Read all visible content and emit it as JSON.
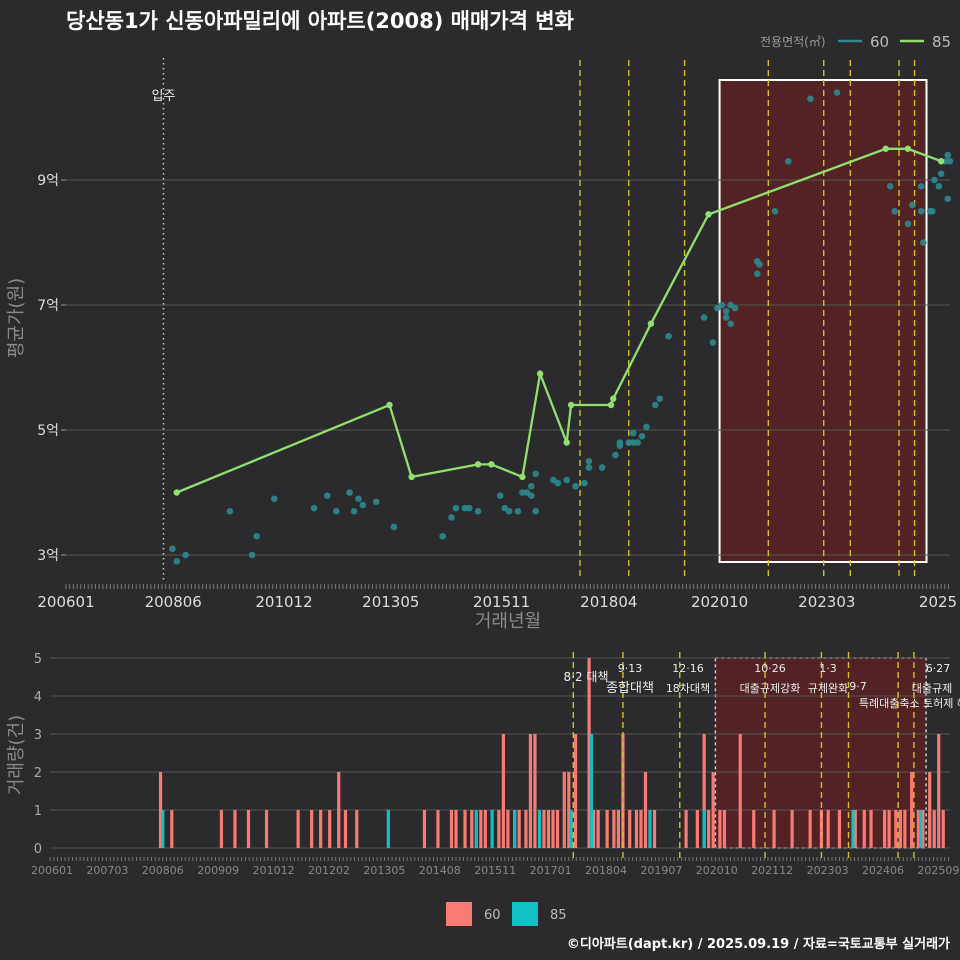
{
  "title": "당산동1가 신동아파밀리에 아파트(2008) 매매가격 변화",
  "footer": "©디아파트(dapt.kr) / 2025.09.19 / 자료=국토교통부 실거래가",
  "colors": {
    "background": "#2b2b2d",
    "grid": "#555555",
    "series_60": "#2a8a8e",
    "series_85": "#90e070",
    "bar_60": "#f77a74",
    "bar_85": "#11c0c4",
    "policy_line": "#d4c21c",
    "highlight_fill": "#5a2124",
    "highlight_border": "#ffffff"
  },
  "move_in_label": "입주",
  "chart_data": [
    {
      "type": "scatter",
      "title": "당산동1가 신동아파밀리에 아파트(2008) 매매가격 변화",
      "xlabel": "거래년월",
      "ylabel": "평균가(원)",
      "x_ticks": [
        "200601",
        "200806",
        "201012",
        "201305",
        "201511",
        "201804",
        "202010",
        "202303",
        "2025"
      ],
      "y_ticks": [
        {
          "value": 3,
          "label": "3억"
        },
        {
          "value": 5,
          "label": "5억"
        },
        {
          "value": 7,
          "label": "7억"
        },
        {
          "value": 9,
          "label": "9억"
        }
      ],
      "ylim": [
        2.6,
        10.8
      ],
      "legend": {
        "title": "전용면적(㎡)",
        "position": "top-right",
        "items": [
          "60",
          "85"
        ]
      },
      "move_in": 2008.2,
      "policy_lines": [
        2017.6,
        2018.7,
        2019.96,
        2021.85,
        2023.1,
        2023.7,
        2024.8,
        2025.15
      ],
      "highlight_range": [
        2020.75,
        2025.42
      ],
      "series": [
        {
          "name": "60",
          "style": "scatter",
          "points": [
            [
              2008.4,
              3.1
            ],
            [
              2008.5,
              2.9
            ],
            [
              2008.7,
              3.0
            ],
            [
              2009.7,
              3.7
            ],
            [
              2010.2,
              3.0
            ],
            [
              2010.3,
              3.3
            ],
            [
              2010.7,
              3.9
            ],
            [
              2011.6,
              3.75
            ],
            [
              2011.9,
              3.95
            ],
            [
              2012.1,
              3.7
            ],
            [
              2012.4,
              4.0
            ],
            [
              2012.6,
              3.9
            ],
            [
              2012.5,
              3.7
            ],
            [
              2012.7,
              3.8
            ],
            [
              2013.0,
              3.85
            ],
            [
              2013.4,
              3.45
            ],
            [
              2014.5,
              3.3
            ],
            [
              2014.7,
              3.6
            ],
            [
              2014.8,
              3.75
            ],
            [
              2015.0,
              3.75
            ],
            [
              2015.1,
              3.75
            ],
            [
              2015.3,
              3.7
            ],
            [
              2015.8,
              3.95
            ],
            [
              2015.9,
              3.75
            ],
            [
              2016.0,
              3.7
            ],
            [
              2016.2,
              3.7
            ],
            [
              2016.3,
              4.0
            ],
            [
              2016.4,
              4.0
            ],
            [
              2016.5,
              4.1
            ],
            [
              2016.5,
              3.95
            ],
            [
              2016.6,
              4.3
            ],
            [
              2016.6,
              3.7
            ],
            [
              2017.0,
              4.2
            ],
            [
              2017.1,
              4.15
            ],
            [
              2017.3,
              4.2
            ],
            [
              2017.5,
              4.1
            ],
            [
              2017.7,
              4.15
            ],
            [
              2017.8,
              4.4
            ],
            [
              2017.8,
              4.5
            ],
            [
              2018.1,
              4.4
            ],
            [
              2018.4,
              4.6
            ],
            [
              2018.5,
              4.8
            ],
            [
              2018.5,
              4.75
            ],
            [
              2018.7,
              4.8
            ],
            [
              2018.8,
              4.95
            ],
            [
              2018.8,
              4.8
            ],
            [
              2018.9,
              4.8
            ],
            [
              2019.0,
              4.9
            ],
            [
              2019.1,
              5.05
            ],
            [
              2019.3,
              5.4
            ],
            [
              2019.4,
              5.5
            ],
            [
              2019.6,
              6.5
            ],
            [
              2020.4,
              6.8
            ],
            [
              2020.6,
              6.4
            ],
            [
              2020.7,
              6.95
            ],
            [
              2020.8,
              7.0
            ],
            [
              2020.9,
              6.9
            ],
            [
              2020.9,
              6.8
            ],
            [
              2021.0,
              6.7
            ],
            [
              2021.0,
              7.0
            ],
            [
              2021.1,
              6.95
            ],
            [
              2021.6,
              7.5
            ],
            [
              2021.6,
              7.7
            ],
            [
              2021.65,
              7.65
            ],
            [
              2022.0,
              8.5
            ],
            [
              2022.3,
              9.3
            ],
            [
              2022.8,
              10.3
            ],
            [
              2023.4,
              10.4
            ],
            [
              2024.6,
              8.9
            ],
            [
              2024.7,
              8.5
            ],
            [
              2025.0,
              8.3
            ],
            [
              2025.1,
              8.6
            ],
            [
              2025.3,
              8.9
            ],
            [
              2025.3,
              8.5
            ],
            [
              2025.35,
              8.0
            ],
            [
              2025.5,
              8.5
            ],
            [
              2025.55,
              8.5
            ],
            [
              2025.6,
              9.0
            ],
            [
              2025.7,
              8.9
            ],
            [
              2025.75,
              9.1
            ],
            [
              2025.85,
              9.3
            ],
            [
              2025.9,
              8.7
            ],
            [
              2025.9,
              9.4
            ],
            [
              2025.95,
              9.3
            ]
          ]
        },
        {
          "name": "85",
          "style": "line",
          "points": [
            [
              2008.5,
              4.0
            ],
            [
              2013.3,
              5.4
            ],
            [
              2013.8,
              4.25
            ],
            [
              2015.3,
              4.45
            ],
            [
              2015.6,
              4.45
            ],
            [
              2016.3,
              4.25
            ],
            [
              2016.7,
              5.9
            ],
            [
              2017.3,
              4.8
            ],
            [
              2017.4,
              5.4
            ],
            [
              2018.3,
              5.4
            ],
            [
              2018.35,
              5.5
            ],
            [
              2019.2,
              6.7
            ],
            [
              2020.5,
              8.45
            ],
            [
              2024.5,
              9.5
            ],
            [
              2025.0,
              9.5
            ],
            [
              2025.75,
              9.3
            ]
          ]
        }
      ]
    },
    {
      "type": "bar",
      "ylabel": "거래량(건)",
      "x_ticks": [
        "200601",
        "200703",
        "200806",
        "200909",
        "201012",
        "201202",
        "201305",
        "201408",
        "201511",
        "201701",
        "201804",
        "201907",
        "202010",
        "202112",
        "202303",
        "202406",
        "202509"
      ],
      "y_ticks": [
        0,
        1,
        2,
        3,
        4,
        5
      ],
      "ylim": [
        0,
        5
      ],
      "legend": {
        "position": "bottom",
        "items": [
          "60",
          "85"
        ]
      },
      "policy_annotations": [
        {
          "date": "8·2 대책",
          "x": 2017.6
        },
        {
          "date": "9·13",
          "label": "종합대책",
          "x": 2018.7
        },
        {
          "date": "12·16",
          "label": "18차대책",
          "x": 2019.96
        },
        {
          "date": "10·26",
          "label": "대출규제강화",
          "x": 2021.85
        },
        {
          "date": "1·3",
          "label": "규제완화",
          "x": 2023.1
        },
        {
          "date": "9·7",
          "label": "특례대출축소 토허제 해제",
          "x": 2023.7
        },
        {
          "date": "6·27",
          "label": "대출규제",
          "x": 2025.15
        }
      ],
      "bars_85": [
        [
          2008.5,
          1
        ],
        [
          2013.5,
          1
        ],
        [
          2015.45,
          1
        ],
        [
          2015.8,
          1
        ],
        [
          2016.3,
          1
        ],
        [
          2016.85,
          1
        ],
        [
          2017.55,
          1
        ],
        [
          2018.0,
          3
        ],
        [
          2018.0,
          1
        ],
        [
          2019.3,
          1
        ],
        [
          2020.5,
          1
        ],
        [
          2023.8,
          1
        ],
        [
          2025.3,
          1
        ]
      ],
      "bars_60": [
        [
          2008.45,
          2
        ],
        [
          2008.7,
          1
        ],
        [
          2009.8,
          1
        ],
        [
          2010.1,
          1
        ],
        [
          2010.4,
          1
        ],
        [
          2010.8,
          1
        ],
        [
          2011.5,
          1
        ],
        [
          2011.8,
          1
        ],
        [
          2012.0,
          1
        ],
        [
          2012.2,
          1
        ],
        [
          2012.4,
          2
        ],
        [
          2012.55,
          1
        ],
        [
          2012.8,
          1
        ],
        [
          2014.3,
          1
        ],
        [
          2014.6,
          1
        ],
        [
          2014.9,
          1
        ],
        [
          2015.0,
          1
        ],
        [
          2015.2,
          1
        ],
        [
          2015.35,
          1
        ],
        [
          2015.55,
          1
        ],
        [
          2015.65,
          1
        ],
        [
          2015.95,
          1
        ],
        [
          2016.05,
          3
        ],
        [
          2016.15,
          1
        ],
        [
          2016.3,
          1
        ],
        [
          2016.4,
          1
        ],
        [
          2016.55,
          1
        ],
        [
          2016.65,
          3
        ],
        [
          2016.75,
          3
        ],
        [
          2016.95,
          1
        ],
        [
          2017.05,
          1
        ],
        [
          2017.15,
          1
        ],
        [
          2017.25,
          1
        ],
        [
          2017.4,
          2
        ],
        [
          2017.5,
          2
        ],
        [
          2017.65,
          3
        ],
        [
          2017.95,
          5
        ],
        [
          2018.05,
          1
        ],
        [
          2018.15,
          1
        ],
        [
          2018.35,
          1
        ],
        [
          2018.5,
          1
        ],
        [
          2018.6,
          1
        ],
        [
          2018.7,
          3
        ],
        [
          2018.85,
          1
        ],
        [
          2019.0,
          1
        ],
        [
          2019.1,
          1
        ],
        [
          2019.2,
          2
        ],
        [
          2019.4,
          1
        ],
        [
          2020.1,
          1
        ],
        [
          2020.35,
          1
        ],
        [
          2020.5,
          3
        ],
        [
          2020.6,
          1
        ],
        [
          2020.7,
          2
        ],
        [
          2020.85,
          1
        ],
        [
          2020.95,
          1
        ],
        [
          2021.3,
          3
        ],
        [
          2021.6,
          1
        ],
        [
          2022.05,
          1
        ],
        [
          2022.45,
          1
        ],
        [
          2022.85,
          1
        ],
        [
          2023.1,
          1
        ],
        [
          2023.25,
          1
        ],
        [
          2023.5,
          1
        ],
        [
          2023.85,
          1
        ],
        [
          2024.05,
          1
        ],
        [
          2024.2,
          1
        ],
        [
          2024.5,
          1
        ],
        [
          2024.6,
          1
        ],
        [
          2024.75,
          1
        ],
        [
          2024.85,
          1
        ],
        [
          2024.95,
          1
        ],
        [
          2025.1,
          2
        ],
        [
          2025.25,
          1
        ],
        [
          2025.35,
          1
        ],
        [
          2025.5,
          2
        ],
        [
          2025.6,
          1
        ],
        [
          2025.7,
          3
        ],
        [
          2025.8,
          1
        ]
      ]
    }
  ]
}
